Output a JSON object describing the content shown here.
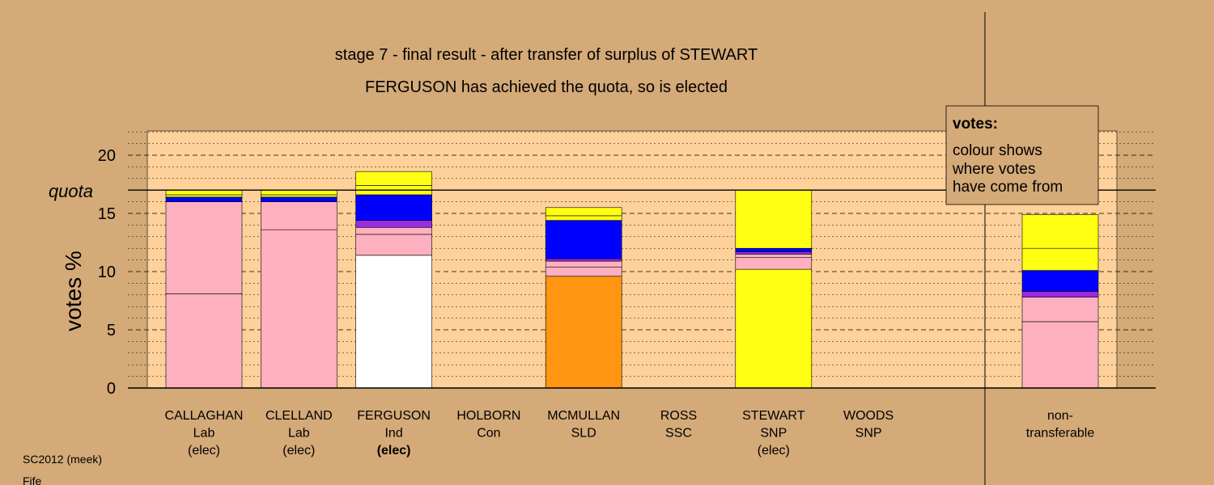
{
  "chart_data": {
    "type": "bar",
    "title": "stage 7 - final result - after transfer of surplus of STEWART",
    "subtitle": "FERGUSON has achieved the quota, so is elected",
    "ylabel": "votes %",
    "ylim": [
      0,
      22
    ],
    "yticks": [
      0,
      5,
      10,
      15,
      20
    ],
    "quota_label": "quota",
    "quota_value": 17,
    "grid": true,
    "legend": {
      "title": "votes:",
      "lines": [
        "colour shows",
        "where votes",
        "have come from"
      ],
      "placement": "top-right"
    },
    "colors": {
      "background": "#d4aa78",
      "plot": "#fed19b",
      "Lab": "#ffb0c0",
      "Ind": "#ffffff",
      "SLD": "#ff9510",
      "SNP": "#ffff11",
      "Con": "#0000ff",
      "SSC": "#9a2be2"
    },
    "candidates": [
      {
        "name": "CALLAGHAN",
        "party": "Lab",
        "status": "(elec)",
        "segments": [
          {
            "value": 8.1,
            "color": "#ffb0c0"
          },
          {
            "value": 7.9,
            "color": "#ffb0c0"
          },
          {
            "value": 0.4,
            "color": "#0000ff"
          },
          {
            "value": 0.2,
            "color": "#ffff11"
          },
          {
            "value": 0.4,
            "color": "#ffff11"
          }
        ]
      },
      {
        "name": "CLELLAND",
        "party": "Lab",
        "status": "(elec)",
        "segments": [
          {
            "value": 13.6,
            "color": "#ffb0c0"
          },
          {
            "value": 2.4,
            "color": "#ffb0c0"
          },
          {
            "value": 0.4,
            "color": "#0000ff"
          },
          {
            "value": 0.2,
            "color": "#ffff11"
          },
          {
            "value": 0.4,
            "color": "#ffff11"
          }
        ]
      },
      {
        "name": "FERGUSON",
        "party": "Ind",
        "status": "(elec)",
        "segments": [
          {
            "value": 11.4,
            "color": "#ffffff"
          },
          {
            "value": 1.8,
            "color": "#ffb0c0"
          },
          {
            "value": 0.6,
            "color": "#ffb0c0"
          },
          {
            "value": 0.6,
            "color": "#9a2be2"
          },
          {
            "value": 2.2,
            "color": "#0000ff"
          },
          {
            "value": 0.8,
            "color": "#ffff11"
          },
          {
            "value": 1.2,
            "color": "#ffff11"
          }
        ]
      },
      {
        "name": "HOLBORN",
        "party": "Con",
        "status": "",
        "segments": []
      },
      {
        "name": "MCMULLAN",
        "party": "SLD",
        "status": "",
        "segments": [
          {
            "value": 9.6,
            "color": "#ff9510"
          },
          {
            "value": 0.8,
            "color": "#ffb0c0"
          },
          {
            "value": 0.5,
            "color": "#ffb0c0"
          },
          {
            "value": 0.2,
            "color": "#9a2be2"
          },
          {
            "value": 3.3,
            "color": "#0000ff"
          },
          {
            "value": 0.4,
            "color": "#ffff11"
          },
          {
            "value": 0.7,
            "color": "#ffff11"
          }
        ]
      },
      {
        "name": "ROSS",
        "party": "SSC",
        "status": "",
        "segments": []
      },
      {
        "name": "STEWART",
        "party": "SNP",
        "status": "(elec)",
        "segments": [
          {
            "value": 10.2,
            "color": "#ffff11"
          },
          {
            "value": 1.0,
            "color": "#ffb0c0"
          },
          {
            "value": 0.3,
            "color": "#ffb0c0"
          },
          {
            "value": 0.2,
            "color": "#9a2be2"
          },
          {
            "value": 0.3,
            "color": "#0000ff"
          },
          {
            "value": 5.0,
            "color": "#ffff11"
          }
        ]
      },
      {
        "name": "WOODS",
        "party": "SNP",
        "status": "",
        "segments": []
      }
    ],
    "nontransferable": {
      "label_lines": [
        "non-",
        "transferable"
      ],
      "segments": [
        {
          "value": 5.7,
          "color": "#ffb0c0"
        },
        {
          "value": 2.1,
          "color": "#ffb0c0"
        },
        {
          "value": 0.5,
          "color": "#9a2be2"
        },
        {
          "value": 1.8,
          "color": "#0000ff"
        },
        {
          "value": 1.9,
          "color": "#ffff11"
        },
        {
          "value": 2.9,
          "color": "#ffff11"
        }
      ]
    }
  },
  "footer": {
    "code": "SC2012 (meek)",
    "region": "Fife"
  }
}
